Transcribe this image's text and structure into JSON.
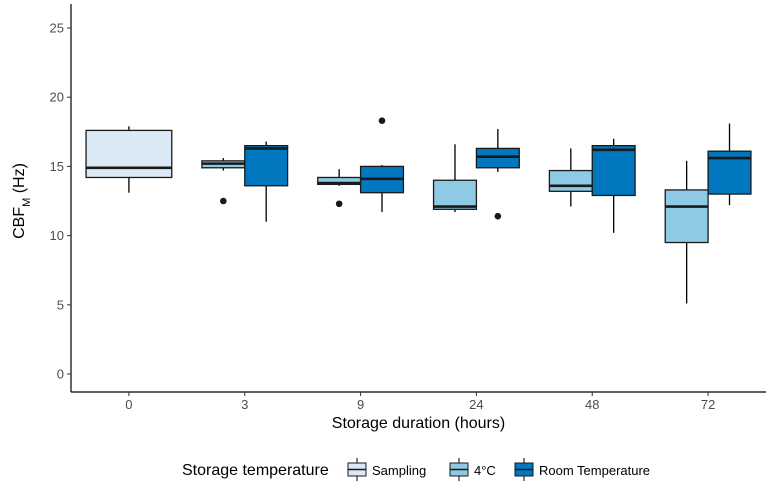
{
  "chart_data": {
    "type": "box",
    "xlabel": "Storage duration (hours)",
    "ylabel_main": "CBF",
    "ylabel_sub": "M",
    "ylabel_unit": " (Hz)",
    "ylim": [
      -1.3,
      26.3
    ],
    "yticks": [
      0,
      5,
      10,
      15,
      20,
      25
    ],
    "grid": false,
    "categories": [
      "0",
      "3",
      "9",
      "24",
      "48",
      "72"
    ],
    "legend": {
      "title": "Storage temperature",
      "position": "bottom",
      "entries": [
        {
          "label": "Sampling",
          "color": "#dbe9f6"
        },
        {
          "label": "4°C",
          "color": "#8ecae6"
        },
        {
          "label": "Room Temperature",
          "color": "#0077be"
        }
      ]
    },
    "groups": [
      {
        "category": "0",
        "series": "Sampling",
        "slot": 0,
        "width": 1,
        "color": "#dbe9f6",
        "whisker_low": 13.1,
        "q1": 14.2,
        "median": 14.9,
        "q3": 17.6,
        "whisker_high": 17.9,
        "outliers": []
      },
      {
        "category": "3",
        "series": "4°C",
        "slot": 0,
        "width": 0.5,
        "color": "#8ecae6",
        "whisker_low": 14.7,
        "q1": 14.9,
        "median": 15.2,
        "q3": 15.4,
        "whisker_high": 15.6,
        "outliers": [
          12.5
        ]
      },
      {
        "category": "3",
        "series": "Room Temperature",
        "slot": 1,
        "width": 0.5,
        "color": "#0077be",
        "whisker_low": 11.0,
        "q1": 13.6,
        "median": 16.3,
        "q3": 16.5,
        "whisker_high": 16.8,
        "outliers": []
      },
      {
        "category": "9",
        "series": "4°C",
        "slot": 0,
        "width": 0.5,
        "color": "#8ecae6",
        "whisker_low": 13.6,
        "q1": 13.7,
        "median": 13.8,
        "q3": 14.2,
        "whisker_high": 14.8,
        "outliers": [
          12.3
        ]
      },
      {
        "category": "9",
        "series": "Room Temperature",
        "slot": 1,
        "width": 0.5,
        "color": "#0077be",
        "whisker_low": 11.7,
        "q1": 13.1,
        "median": 14.1,
        "q3": 15.0,
        "whisker_high": 15.1,
        "outliers": [
          18.3
        ]
      },
      {
        "category": "24",
        "series": "4°C",
        "slot": 0,
        "width": 0.5,
        "color": "#8ecae6",
        "whisker_low": 11.7,
        "q1": 11.9,
        "median": 12.1,
        "q3": 14.0,
        "whisker_high": 16.6,
        "outliers": []
      },
      {
        "category": "24",
        "series": "Room Temperature",
        "slot": 1,
        "width": 0.5,
        "color": "#0077be",
        "whisker_low": 14.6,
        "q1": 14.9,
        "median": 15.7,
        "q3": 16.3,
        "whisker_high": 17.7,
        "outliers": [
          11.4
        ]
      },
      {
        "category": "48",
        "series": "4°C",
        "slot": 0,
        "width": 0.5,
        "color": "#8ecae6",
        "whisker_low": 12.1,
        "q1": 13.2,
        "median": 13.6,
        "q3": 14.7,
        "whisker_high": 16.3,
        "outliers": []
      },
      {
        "category": "48",
        "series": "Room Temperature",
        "slot": 1,
        "width": 0.5,
        "color": "#0077be",
        "whisker_low": 10.2,
        "q1": 12.9,
        "median": 16.2,
        "q3": 16.5,
        "whisker_high": 17.0,
        "outliers": []
      },
      {
        "category": "72",
        "series": "4°C",
        "slot": 0,
        "width": 0.5,
        "color": "#8ecae6",
        "whisker_low": 5.1,
        "q1": 9.5,
        "median": 12.1,
        "q3": 13.3,
        "whisker_high": 15.4,
        "outliers": []
      },
      {
        "category": "72",
        "series": "Room Temperature",
        "slot": 1,
        "width": 0.5,
        "color": "#0077be",
        "whisker_low": 12.2,
        "q1": 13.0,
        "median": 15.6,
        "q3": 16.1,
        "whisker_high": 18.1,
        "outliers": []
      }
    ]
  }
}
